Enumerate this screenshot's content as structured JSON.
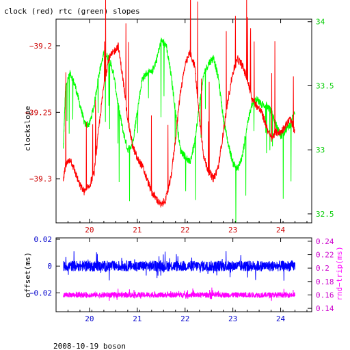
{
  "title": "clock (red) rtc (green) slopes",
  "footer": "2008-10-19 boson",
  "colors": {
    "clock": "#ff0000",
    "rtc": "#00ff00",
    "offset": "#0000ff",
    "rndtrip": "#ff00ff",
    "axis": "#000000"
  },
  "chart_data": [
    {
      "id": "slopes",
      "type": "line",
      "ylabel": "clockslope",
      "y2label": "",
      "xlim": [
        19.3,
        24.65
      ],
      "ylim": [
        -39.333,
        -39.18
      ],
      "y2lim": [
        32.43,
        34.02
      ],
      "xticks": [
        20,
        21,
        22,
        23,
        24
      ],
      "yticks": [
        -39.2,
        -39.25,
        -39.3
      ],
      "ytick_labels": [
        "−39.2",
        "−39.25",
        "−39.3"
      ],
      "y2ticks": [
        34,
        33.5,
        33,
        32.5
      ],
      "y2tick_labels": [
        "34",
        "33.5",
        "33",
        "32.5"
      ],
      "series": [
        {
          "name": "clock",
          "axis": "left",
          "x": [
            19.45,
            19.5,
            19.6,
            19.7,
            19.8,
            19.9,
            20.0,
            20.1,
            20.2,
            20.3,
            20.4,
            20.5,
            20.6,
            20.7,
            20.8,
            20.9,
            21.0,
            21.1,
            21.2,
            21.3,
            21.4,
            21.5,
            21.6,
            21.7,
            21.8,
            21.9,
            22.0,
            22.1,
            22.2,
            22.3,
            22.4,
            22.5,
            22.6,
            22.7,
            22.8,
            22.9,
            23.0,
            23.1,
            23.2,
            23.3,
            23.4,
            23.5,
            23.6,
            23.7,
            23.8,
            23.9,
            24.0,
            24.1,
            24.2,
            24.3
          ],
          "values": [
            -39.3,
            -39.29,
            -39.285,
            -39.295,
            -39.305,
            -39.31,
            -39.305,
            -39.295,
            -39.26,
            -39.23,
            -39.21,
            -39.205,
            -39.2,
            -39.225,
            -39.255,
            -39.275,
            -39.285,
            -39.29,
            -39.3,
            -39.31,
            -39.315,
            -39.32,
            -39.315,
            -39.3,
            -39.27,
            -39.235,
            -39.215,
            -39.205,
            -39.215,
            -39.255,
            -39.285,
            -39.295,
            -39.3,
            -39.29,
            -39.265,
            -39.24,
            -39.22,
            -39.21,
            -39.215,
            -39.225,
            -39.24,
            -39.245,
            -39.25,
            -39.26,
            -39.27,
            -39.265,
            -39.265,
            -39.26,
            -39.255,
            -39.265
          ]
        },
        {
          "name": "rtc",
          "axis": "right",
          "x": [
            19.45,
            19.5,
            19.6,
            19.7,
            19.8,
            19.9,
            20.0,
            20.1,
            20.2,
            20.3,
            20.4,
            20.5,
            20.6,
            20.7,
            20.8,
            20.9,
            21.0,
            21.1,
            21.2,
            21.3,
            21.4,
            21.5,
            21.6,
            21.7,
            21.8,
            21.9,
            22.0,
            22.1,
            22.2,
            22.3,
            22.4,
            22.5,
            22.6,
            22.7,
            22.8,
            22.9,
            23.0,
            23.1,
            23.2,
            23.3,
            23.4,
            23.5,
            23.6,
            23.7,
            23.8,
            23.9,
            24.0,
            24.1,
            24.2,
            24.3
          ],
          "values": [
            33.0,
            33.5,
            33.6,
            33.5,
            33.35,
            33.2,
            33.2,
            33.35,
            33.6,
            33.75,
            33.72,
            33.6,
            33.35,
            33.15,
            33.0,
            33.05,
            33.3,
            33.55,
            33.6,
            33.6,
            33.7,
            33.85,
            33.82,
            33.6,
            33.3,
            33.0,
            32.95,
            32.9,
            33.05,
            33.35,
            33.6,
            33.68,
            33.72,
            33.55,
            33.25,
            33.05,
            32.9,
            32.85,
            32.95,
            33.2,
            33.35,
            33.4,
            33.35,
            33.35,
            33.3,
            33.2,
            33.1,
            33.15,
            33.2,
            33.3
          ]
        }
      ]
    },
    {
      "id": "offset-rndtrip",
      "type": "line",
      "ylabel": "offset(ms)",
      "y2label": "rnd−trip(ms)",
      "xlim": [
        19.3,
        24.65
      ],
      "ylim": [
        -0.034,
        0.021
      ],
      "y2lim": [
        0.135,
        0.245
      ],
      "xticks": [
        20,
        21,
        22,
        23,
        24
      ],
      "yticks": [
        0.02,
        0,
        -0.02
      ],
      "ytick_labels": [
        "0.02",
        "0",
        "−0.02"
      ],
      "y2ticks": [
        0.24,
        0.22,
        0.2,
        0.18,
        0.16,
        0.14
      ],
      "y2tick_labels": [
        "0.24",
        "0.22",
        "0.2",
        "0.18",
        "0.16",
        "0.14"
      ],
      "series": [
        {
          "name": "offset",
          "axis": "left",
          "mean": 0.0,
          "noise": 0.004,
          "x_range": [
            19.45,
            24.3
          ]
        },
        {
          "name": "rndtrip",
          "axis": "right",
          "mean": 0.16,
          "noise": 0.004,
          "x_range": [
            19.45,
            24.3
          ]
        }
      ]
    }
  ]
}
